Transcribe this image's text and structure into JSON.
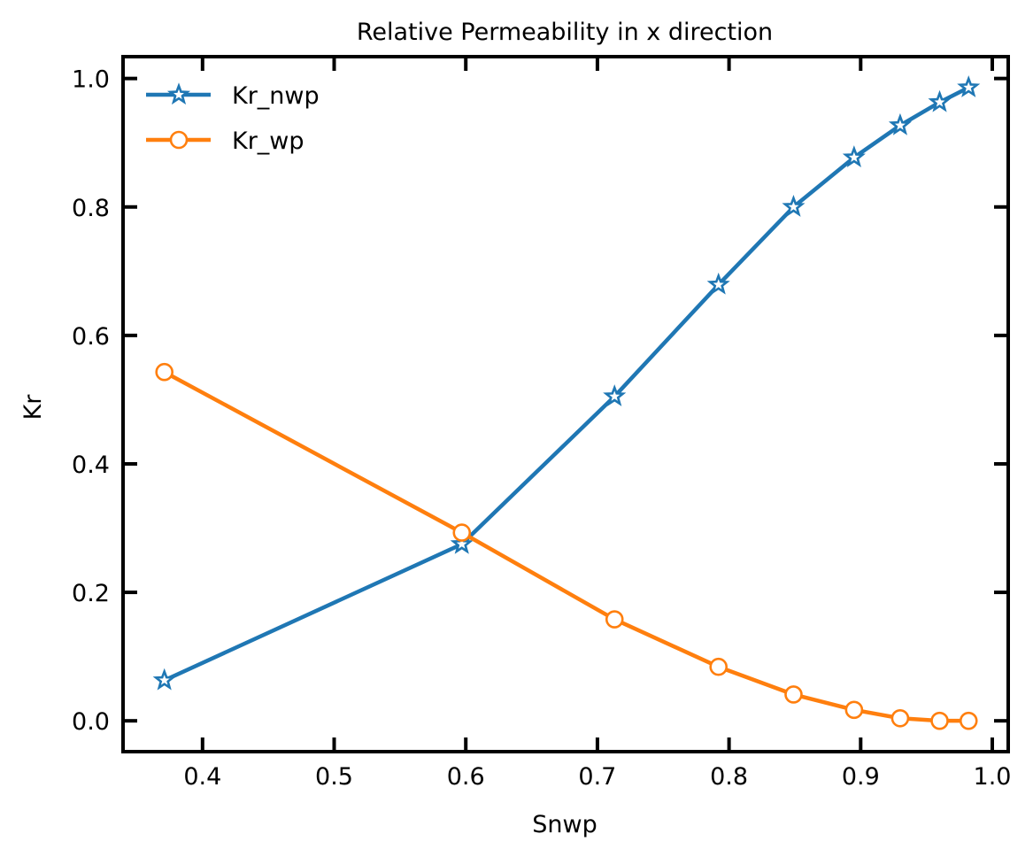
{
  "chart_data": {
    "type": "line",
    "title": "Relative Permeability in x direction",
    "xlabel": "Snwp",
    "ylabel": "Kr",
    "xlim": [
      0.3396,
      1.0121
    ],
    "ylim": [
      -0.048,
      1.034
    ],
    "grid": false,
    "legend_position": "top-left",
    "x_ticks": [
      0.4,
      0.5,
      0.6,
      0.7,
      0.8,
      0.9,
      1.0
    ],
    "x_tick_labels": [
      "0.4",
      "0.5",
      "0.6",
      "0.7",
      "0.8",
      "0.9",
      "1.0"
    ],
    "y_ticks": [
      0.0,
      0.2,
      0.4,
      0.6,
      0.8,
      1.0
    ],
    "y_tick_labels": [
      "0.0",
      "0.2",
      "0.4",
      "0.6",
      "0.8",
      "1.0"
    ],
    "x": [
      0.371,
      0.597,
      0.713,
      0.792,
      0.849,
      0.895,
      0.93,
      0.96,
      0.982
    ],
    "series": [
      {
        "name": "Kr_nwp",
        "color": "#1f77b4",
        "marker": "star",
        "values": [
          0.063,
          0.275,
          0.505,
          0.679,
          0.8,
          0.877,
          0.927,
          0.963,
          0.986
        ]
      },
      {
        "name": "Kr_wp",
        "color": "#ff7f0e",
        "marker": "circle",
        "values": [
          0.543,
          0.293,
          0.158,
          0.084,
          0.041,
          0.017,
          0.004,
          0.0,
          0.0
        ]
      }
    ]
  }
}
